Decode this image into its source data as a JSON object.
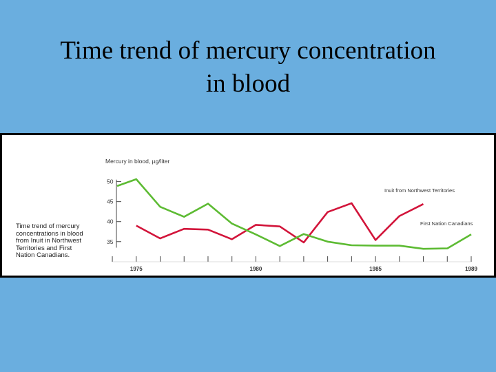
{
  "slide": {
    "title_line1": "Time trend of mercury concentration",
    "title_line2": "in blood"
  },
  "caption": {
    "lines": [
      "Time trend of mercury",
      "concentrations in blood",
      "from Inuit in Northwest",
      "Territories and First",
      "Nation Canadians."
    ]
  },
  "chart_data": {
    "type": "line",
    "ylabel": "Mercury in blood, µg/liter",
    "yticks": [
      50,
      45,
      40,
      35
    ],
    "ylim": [
      31,
      52
    ],
    "xlim": [
      1974.2,
      1989
    ],
    "xticks": [
      1975,
      1980,
      1985,
      1989
    ],
    "series": [
      {
        "name": "Inuit from Northwest Territories",
        "color": "#d2143a",
        "x": [
          1975,
          1976,
          1977,
          1978,
          1979,
          1980,
          1981,
          1982,
          1983,
          1984,
          1985,
          1986,
          1987
        ],
        "values": [
          39.0,
          35.8,
          38.2,
          38.0,
          35.6,
          39.2,
          38.8,
          34.8,
          42.4,
          44.6,
          35.4,
          41.4,
          44.4
        ]
      },
      {
        "name": "First Nation Canadians",
        "color": "#5dbb33",
        "x": [
          1974.2,
          1975,
          1976,
          1977,
          1978,
          1979,
          1980,
          1981,
          1982,
          1983,
          1984,
          1985,
          1986,
          1987,
          1988,
          1989
        ],
        "values": [
          48.9,
          50.6,
          43.7,
          41.2,
          44.5,
          39.5,
          36.8,
          33.9,
          36.9,
          35.0,
          34.1,
          34.0,
          34.0,
          33.2,
          33.3,
          36.8
        ]
      }
    ]
  }
}
